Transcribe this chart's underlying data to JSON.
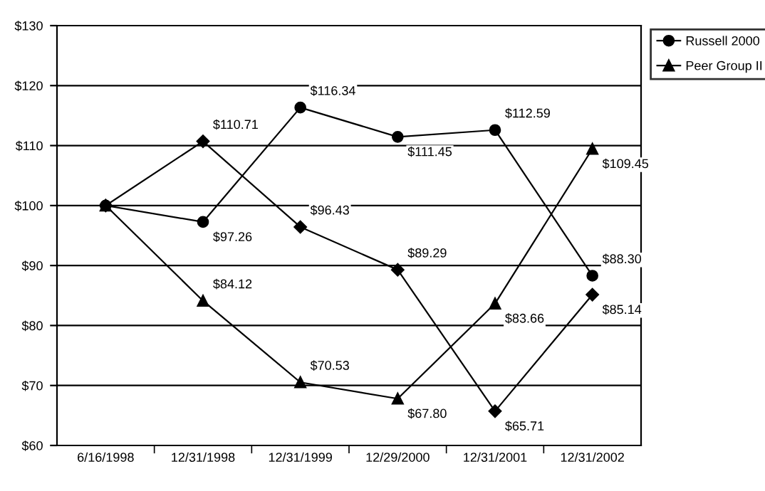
{
  "chart_data": {
    "type": "line",
    "categories": [
      "6/16/1998",
      "12/31/1998",
      "12/31/1999",
      "12/29/2000",
      "12/31/2001",
      "12/31/2002"
    ],
    "series": [
      {
        "color": "#000000",
        "marker": "diamond",
        "values": [
          100,
          110.71,
          96.43,
          89.29,
          65.71,
          85.14
        ],
        "value_labels": [
          null,
          "$110.71",
          "$96.43",
          "$89.29",
          "$65.71",
          "$85.14"
        ]
      },
      {
        "name": "Russell 2000",
        "color": "#000000",
        "marker": "circle",
        "values": [
          100,
          97.26,
          116.34,
          111.45,
          112.59,
          88.3
        ],
        "value_labels": [
          null,
          "$97.26",
          "$116.34",
          "$111.45",
          "$112.59",
          "$88.30"
        ]
      },
      {
        "name": "Peer Group II",
        "color": "#000000",
        "marker": "triangle",
        "values": [
          100,
          84.12,
          70.53,
          67.8,
          83.66,
          109.45
        ],
        "value_labels": [
          null,
          "$84.12",
          "$70.53",
          "$67.80",
          "$83.66",
          "$109.45"
        ]
      }
    ],
    "ylim": [
      60,
      130
    ],
    "yticks": [
      {
        "value": 60,
        "label": "$60"
      },
      {
        "value": 70,
        "label": "$70"
      },
      {
        "value": 80,
        "label": "$80"
      },
      {
        "value": 90,
        "label": "$90"
      },
      {
        "value": 100,
        "label": "$100"
      },
      {
        "value": 110,
        "label": "$110"
      },
      {
        "value": 120,
        "label": "$120"
      },
      {
        "value": 130,
        "label": "$130"
      }
    ],
    "grid": "y",
    "legend": "right",
    "line_style": "solid"
  }
}
